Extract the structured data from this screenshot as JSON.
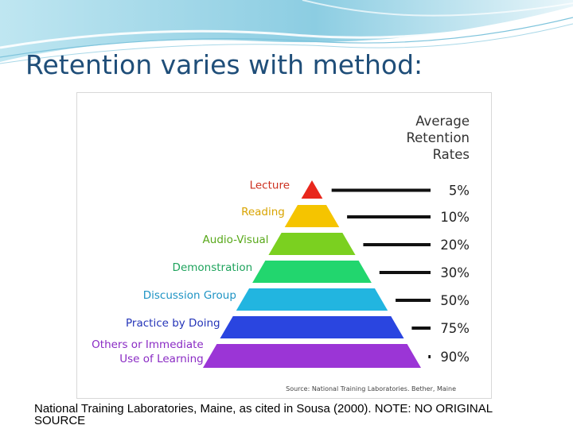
{
  "slide": {
    "title": "Retention varies with method:",
    "caption": "National Training Laboratories, Maine, as cited in Sousa (2000). NOTE: NO ORIGINAL SOURCE"
  },
  "figure": {
    "header_lines": [
      "Average",
      "Retention",
      "Rates"
    ],
    "source": "Source: National Training Laboratories. Bether, Maine",
    "levels": [
      {
        "label_lines": [
          "Lecture"
        ],
        "rate": "5%",
        "color": "#e8271c",
        "label_color": "#cc2f1e"
      },
      {
        "label_lines": [
          "Reading"
        ],
        "rate": "10%",
        "color": "#f5c400",
        "label_color": "#d9a400"
      },
      {
        "label_lines": [
          "Audio-Visual"
        ],
        "rate": "20%",
        "color": "#7bd020",
        "label_color": "#58a81a"
      },
      {
        "label_lines": [
          "Demonstration"
        ],
        "rate": "30%",
        "color": "#22d66e",
        "label_color": "#1ea35c"
      },
      {
        "label_lines": [
          "Discussion Group"
        ],
        "rate": "50%",
        "color": "#22b5e0",
        "label_color": "#1d93c4"
      },
      {
        "label_lines": [
          "Practice by Doing"
        ],
        "rate": "75%",
        "color": "#2a45e0",
        "label_color": "#2434b8"
      },
      {
        "label_lines": [
          "Others or Immediate",
          "Use of Learning"
        ],
        "rate": "90%",
        "color": "#9b35d6",
        "label_color": "#8a2bc4"
      }
    ]
  },
  "colors": {
    "title": "#1f4e79",
    "banner_light": "#e6f4f8",
    "banner_mid": "#9fd4e6",
    "line": "#111111",
    "header_text": "#333333"
  }
}
